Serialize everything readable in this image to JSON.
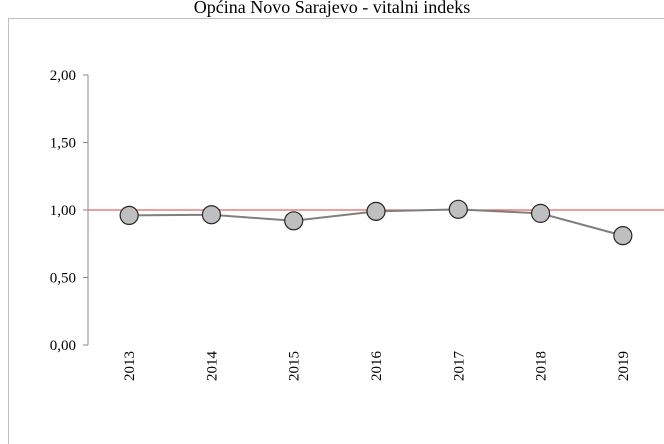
{
  "chart_data": {
    "type": "line",
    "title": "Općina Novo Sarajevo - vitalni indeks",
    "categories": [
      "2013",
      "2014",
      "2015",
      "2016",
      "2017",
      "2018",
      "2019"
    ],
    "series": [
      {
        "name": "Vitalni indeks",
        "color": "#7f7f7f",
        "values": [
          0.96,
          0.965,
          0.92,
          0.99,
          1.005,
          0.975,
          0.81
        ]
      }
    ],
    "ylim": [
      0,
      2
    ],
    "yticks": [
      {
        "value": 0,
        "label": "0,00"
      },
      {
        "value": 0.5,
        "label": "0,50"
      },
      {
        "value": 1,
        "label": "1,00"
      },
      {
        "value": 1.5,
        "label": "1,50"
      },
      {
        "value": 2,
        "label": "2,00"
      }
    ],
    "reference_line": {
      "value": 1,
      "color": "#e06666"
    },
    "marker_fill": "#bfbfbf"
  }
}
